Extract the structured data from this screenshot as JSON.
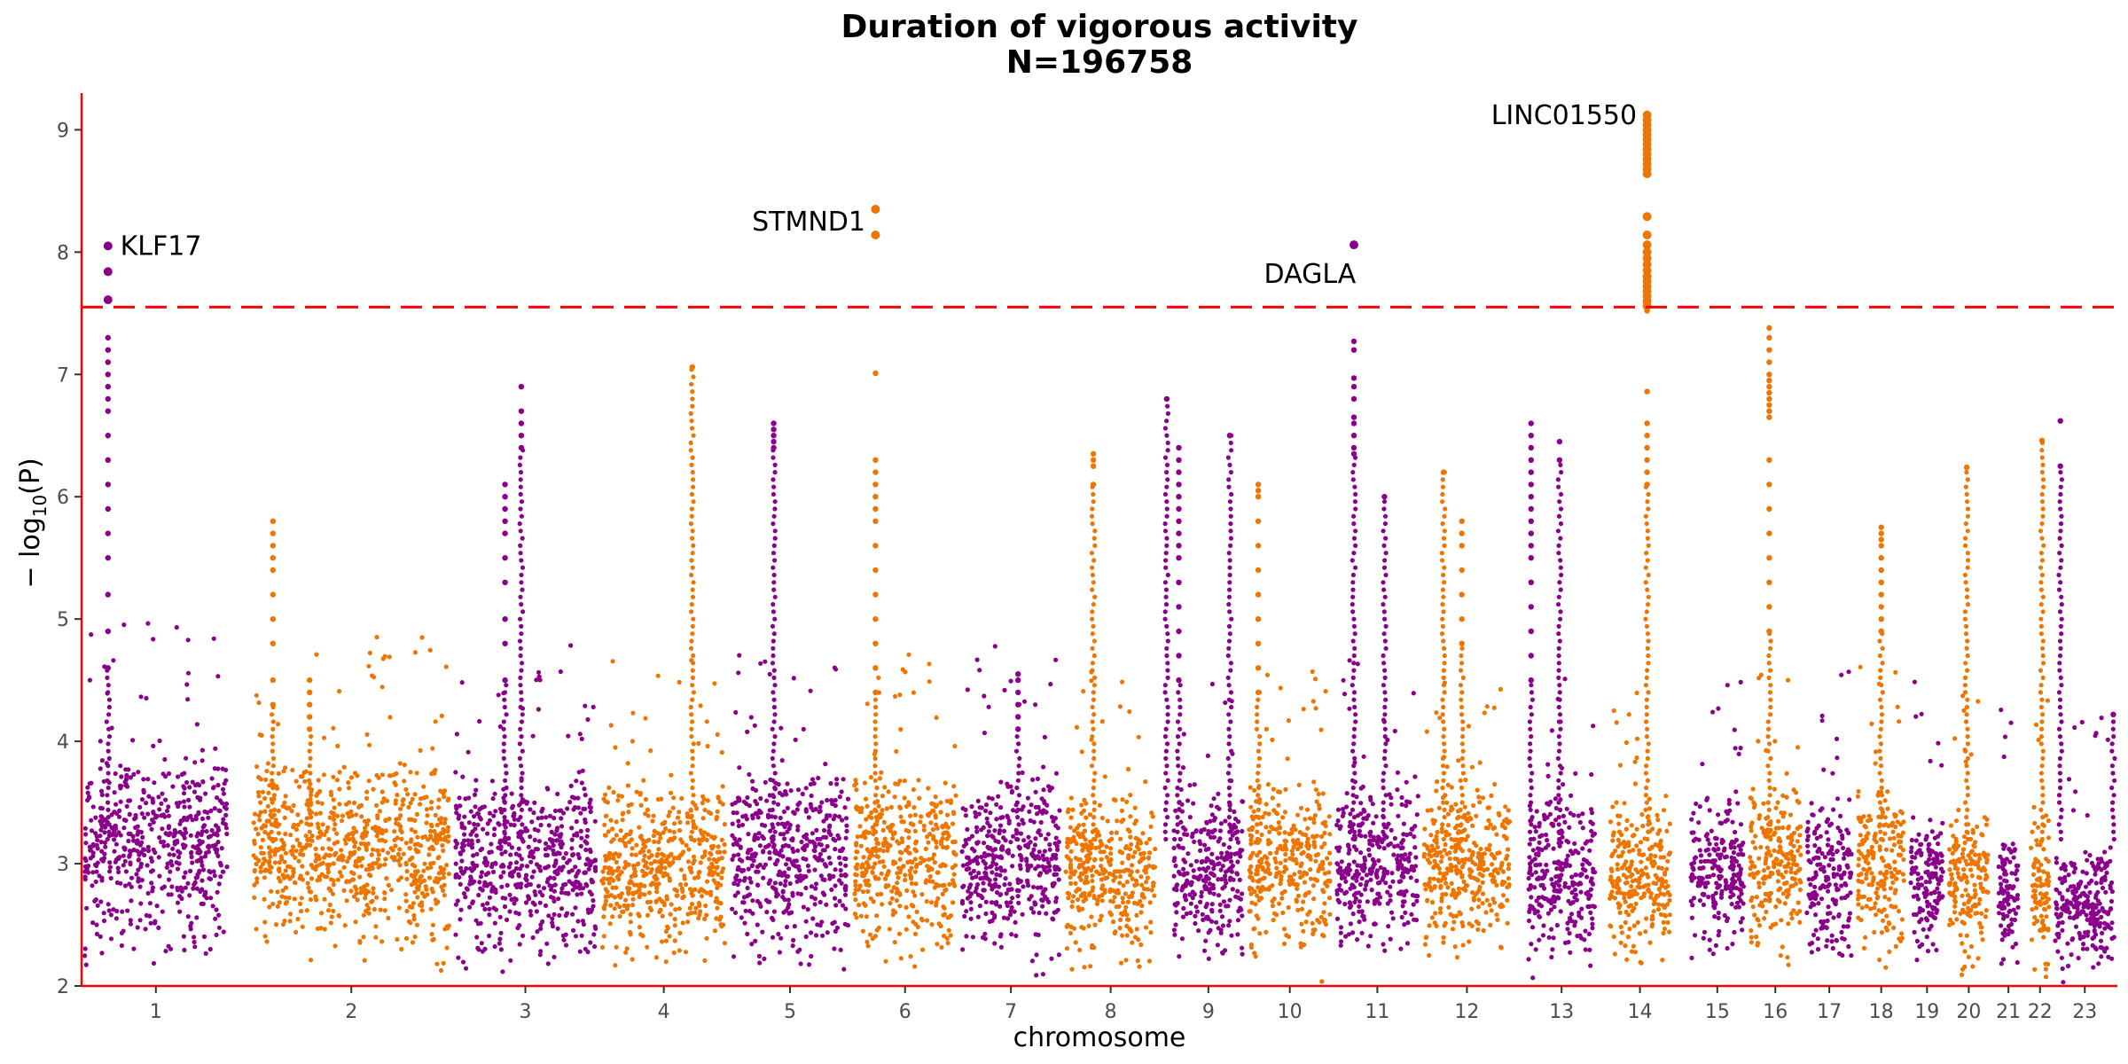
{
  "chart_data": {
    "type": "scatter",
    "subtype": "manhattan",
    "title": "Duration of vigorous activity",
    "subtitle": "N=196758",
    "xlabel": "chromosome",
    "ylabel_prefix": "− log",
    "ylabel_sub": "10",
    "ylabel_suffix": "(P)",
    "ylim": [
      2,
      9.3
    ],
    "y_ticks": [
      "2",
      "3",
      "4",
      "5",
      "6",
      "7",
      "8",
      "9"
    ],
    "significance_threshold": 7.55,
    "colors": {
      "odd": "#8b008b",
      "even": "#ee7600",
      "axis": "#ff0000",
      "threshold": "#ff0000"
    },
    "legend": "none",
    "grid": false,
    "chromosomes": [
      {
        "label": "1",
        "start": 0.0,
        "end": 7.3,
        "base_top": 4.0
      },
      {
        "label": "2",
        "start": 8.3,
        "end": 18.2,
        "base_top": 3.9
      },
      {
        "label": "3",
        "start": 18.2,
        "end": 25.4,
        "base_top": 3.8
      },
      {
        "label": "4",
        "start": 25.4,
        "end": 31.8,
        "base_top": 3.7
      },
      {
        "label": "5",
        "start": 31.8,
        "end": 37.8,
        "base_top": 3.8
      },
      {
        "label": "6",
        "start": 37.8,
        "end": 43.1,
        "base_top": 3.8
      },
      {
        "label": "7",
        "start": 43.1,
        "end": 48.2,
        "base_top": 3.8
      },
      {
        "label": "8",
        "start": 48.2,
        "end": 52.9,
        "base_top": 3.6
      },
      {
        "label": "9",
        "start": 53.5,
        "end": 57.2,
        "base_top": 3.6
      },
      {
        "label": "10",
        "start": 57.2,
        "end": 61.5,
        "base_top": 3.7
      },
      {
        "label": "11",
        "start": 61.5,
        "end": 65.8,
        "base_top": 3.7
      },
      {
        "label": "12",
        "start": 65.8,
        "end": 70.3,
        "base_top": 3.7
      },
      {
        "label": "13",
        "start": 70.9,
        "end": 74.5,
        "base_top": 3.6
      },
      {
        "label": "14",
        "start": 74.9,
        "end": 78.2,
        "base_top": 3.6
      },
      {
        "label": "15",
        "start": 78.9,
        "end": 81.8,
        "base_top": 3.6
      },
      {
        "label": "16",
        "start": 81.8,
        "end": 84.6,
        "base_top": 3.7
      },
      {
        "label": "17",
        "start": 84.6,
        "end": 87.1,
        "base_top": 3.6
      },
      {
        "label": "18",
        "start": 87.1,
        "end": 89.7,
        "base_top": 3.7
      },
      {
        "label": "19",
        "start": 89.7,
        "end": 91.6,
        "base_top": 3.5
      },
      {
        "label": "20",
        "start": 91.6,
        "end": 93.8,
        "base_top": 3.5
      },
      {
        "label": "21",
        "start": 94.0,
        "end": 95.3,
        "base_top": 3.3
      },
      {
        "label": "22",
        "start": 95.6,
        "end": 96.8,
        "base_top": 3.4
      },
      {
        "label": "23",
        "start": 96.8,
        "end": 100.0,
        "base_top": 3.2
      }
    ],
    "peaks": [
      {
        "x": 1.3,
        "values": [
          8.05,
          7.84,
          7.61,
          7.3,
          7.2,
          7.1,
          7.0,
          6.9,
          6.8,
          6.7,
          6.5,
          6.3,
          6.1,
          5.9,
          5.7,
          5.5,
          5.2,
          4.9,
          4.6
        ]
      },
      {
        "x": 9.4,
        "values": [
          5.8,
          5.7,
          5.6,
          5.5,
          5.4,
          5.2,
          5.0,
          4.8,
          4.5,
          4.3
        ]
      },
      {
        "x": 11.2,
        "values": [
          4.5,
          4.4,
          4.3,
          4.2,
          4.1
        ]
      },
      {
        "x": 20.8,
        "values": [
          6.1,
          6.0,
          5.9,
          5.8,
          5.7,
          5.5,
          5.3,
          5.0,
          4.8,
          4.5
        ]
      },
      {
        "x": 21.6,
        "values": [
          6.9,
          6.7,
          6.6,
          6.5,
          6.4
        ]
      },
      {
        "x": 30.0,
        "values": [
          7.06
        ]
      },
      {
        "x": 34.0,
        "values": [
          6.6,
          6.55,
          6.5,
          6.45,
          6.4
        ]
      },
      {
        "x": 39.0,
        "values": [
          8.35,
          8.14,
          7.01,
          6.3,
          6.2,
          6.1,
          6.0,
          5.9,
          5.8,
          5.6,
          5.4,
          5.2,
          5.0,
          4.8,
          4.6,
          4.4
        ]
      },
      {
        "x": 46.0,
        "values": [
          4.55,
          4.5,
          4.4,
          4.3,
          4.2,
          4.1
        ]
      },
      {
        "x": 49.7,
        "values": [
          6.35,
          6.3,
          6.25,
          6.1
        ]
      },
      {
        "x": 53.3,
        "values": [
          6.8
        ]
      },
      {
        "x": 53.9,
        "values": [
          6.4,
          6.3,
          6.2,
          6.1,
          6.0,
          5.9,
          5.8,
          5.7,
          5.6,
          5.5,
          5.3,
          5.1,
          4.9,
          4.7,
          4.5
        ]
      },
      {
        "x": 56.4,
        "values": [
          6.5
        ]
      },
      {
        "x": 57.8,
        "values": [
          6.1,
          6.05,
          6.0,
          5.8,
          5.6,
          5.4,
          5.2,
          5.0,
          4.8,
          4.6,
          4.4
        ]
      },
      {
        "x": 62.5,
        "values": [
          8.06,
          7.27,
          7.2,
          6.97,
          6.9,
          6.8,
          6.65,
          6.6,
          6.5,
          6.4,
          6.35
        ]
      },
      {
        "x": 64.0,
        "values": [
          6.0
        ]
      },
      {
        "x": 66.9,
        "values": [
          6.2
        ]
      },
      {
        "x": 67.8,
        "values": [
          5.8,
          5.7,
          5.6,
          5.4,
          5.2,
          5.0,
          4.8
        ]
      },
      {
        "x": 71.2,
        "values": [
          6.6,
          6.5,
          6.4,
          6.3,
          6.2,
          6.1,
          6.0,
          5.9,
          5.8,
          5.7,
          5.6,
          5.5,
          5.3,
          5.1,
          4.9,
          4.7,
          4.5
        ]
      },
      {
        "x": 72.6,
        "values": [
          6.45,
          6.3
        ]
      },
      {
        "x": 76.9,
        "values": [
          9.12,
          9.08,
          9.04,
          9.0,
          8.96,
          8.92,
          8.88,
          8.84,
          8.8,
          8.76,
          8.72,
          8.68,
          8.64,
          8.29,
          8.14,
          8.06,
          8.0,
          7.95,
          7.9,
          7.85,
          7.8,
          7.76,
          7.72,
          7.68,
          7.64,
          7.6,
          7.56,
          7.52,
          6.86,
          6.6,
          6.5,
          6.4,
          6.3,
          6.2,
          6.1
        ]
      },
      {
        "x": 82.9,
        "values": [
          7.38,
          7.3,
          7.2,
          7.1,
          7.0,
          6.95,
          6.9,
          6.85,
          6.8,
          6.75,
          6.7,
          6.65,
          6.3,
          6.1,
          5.9,
          5.7,
          5.5,
          5.3,
          5.1,
          4.9
        ]
      },
      {
        "x": 88.4,
        "values": [
          5.75,
          5.7,
          5.65,
          5.6,
          5.5,
          5.4,
          5.3,
          5.2,
          5.1,
          5.0,
          4.9
        ]
      },
      {
        "x": 92.6,
        "values": [
          6.24
        ]
      },
      {
        "x": 96.3,
        "values": [
          6.46
        ]
      },
      {
        "x": 97.2,
        "values": [
          6.62,
          6.25
        ]
      },
      {
        "x": 99.8,
        "values": [
          4.22
        ]
      }
    ],
    "annotations": [
      {
        "gene": "KLF17",
        "x": 1.3,
        "y": 8.05,
        "anchor": "start",
        "dx": 0.6,
        "dy": 0.0
      },
      {
        "gene": "STMND1",
        "x": 39.0,
        "y": 8.35,
        "anchor": "end",
        "dx": -0.5,
        "dy": -0.1
      },
      {
        "gene": "DAGLA",
        "x": 62.5,
        "y": 8.06,
        "anchor": "end",
        "dx": 0.1,
        "dy": -0.24
      },
      {
        "gene": "LINC01550",
        "x": 76.9,
        "y": 9.12,
        "anchor": "end",
        "dx": -0.5,
        "dy": 0.0
      }
    ]
  }
}
